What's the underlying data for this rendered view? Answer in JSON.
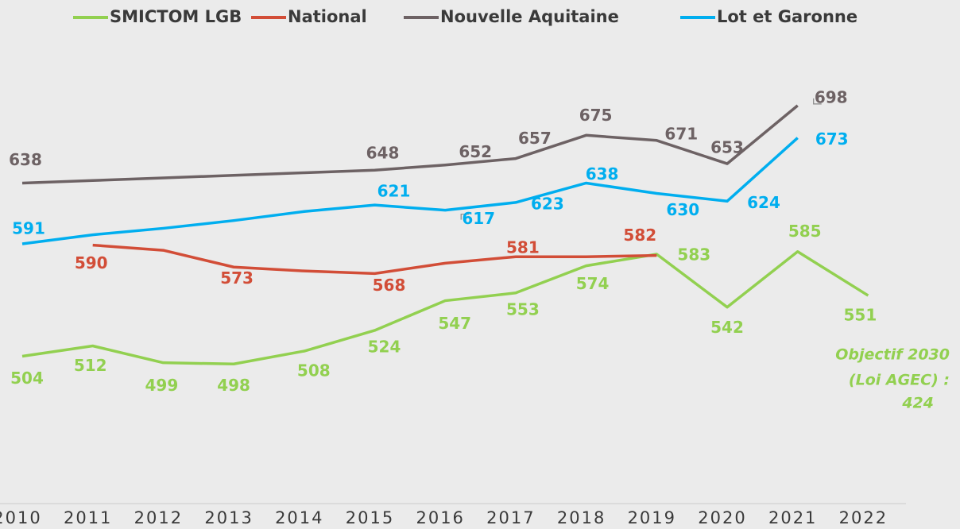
{
  "chart_data": {
    "type": "line",
    "categories": [
      "2010",
      "2011",
      "2012",
      "2013",
      "2014",
      "2015",
      "2016",
      "2017",
      "2018",
      "2019",
      "2020",
      "2021",
      "2022"
    ],
    "series": [
      {
        "name": "SMICTOM LGB",
        "color": "#92d050",
        "values": [
          504,
          512,
          499,
          498,
          508,
          524,
          547,
          553,
          574,
          583,
          542,
          585,
          551
        ]
      },
      {
        "name": "National",
        "color": "#d24d37",
        "values": [
          null,
          590,
          586,
          573,
          570,
          568,
          576,
          581,
          581,
          582,
          null,
          null,
          null
        ]
      },
      {
        "name": "Nouvelle Aquitaine",
        "color": "#6d6264",
        "values": [
          638,
          640,
          642,
          644,
          646,
          648,
          652,
          657,
          675,
          671,
          653,
          698,
          null
        ]
      },
      {
        "name": "Lot et Garonne",
        "color": "#00aeef",
        "values": [
          591,
          598,
          603,
          609,
          616,
          621,
          617,
          623,
          638,
          630,
          624,
          673,
          null
        ]
      }
    ],
    "annotation": [
      "Objectif 2030",
      "(Loi AGEC) :",
      "424"
    ],
    "ylim": [
      390,
      760
    ],
    "legend": "top"
  }
}
